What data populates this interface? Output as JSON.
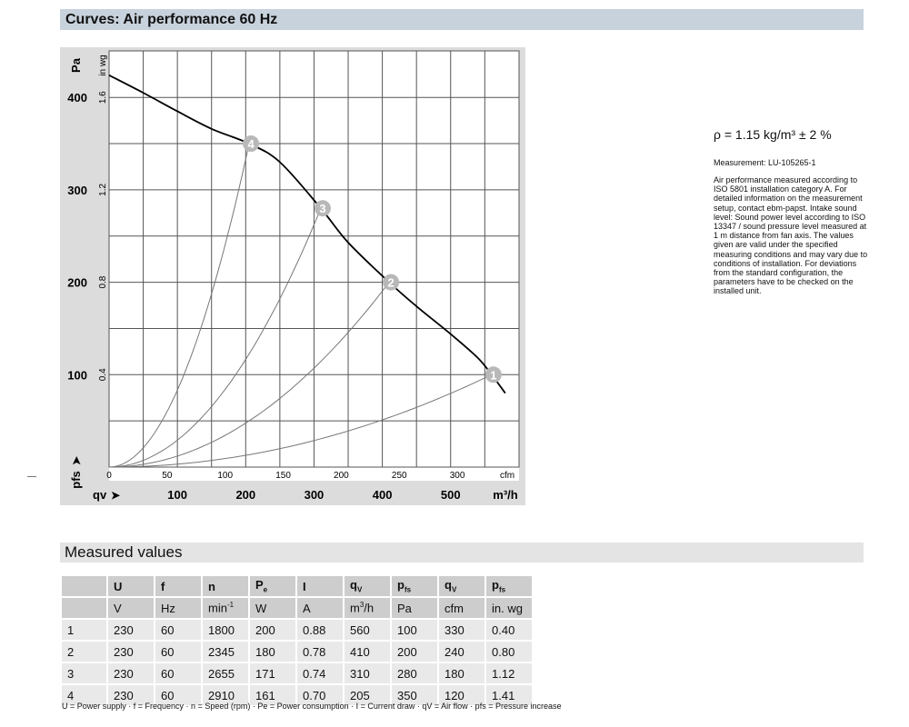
{
  "title": "Curves: Air performance 60 Hz",
  "chart_data": {
    "type": "line",
    "y_label_left": "Pa",
    "y_label_right": "in wg",
    "y_axis_symbol": "pfs",
    "x_label_top": "cfm",
    "x_label_bottom": "m³/h",
    "x_axis_symbol": "qv",
    "ylim_pa": [
      0,
      450
    ],
    "xlim_m3h": [
      0,
      600
    ],
    "y_ticks_pa": [
      100,
      200,
      300,
      400
    ],
    "y_ticks_inwg": [
      "0.4",
      "0.8",
      "1.2",
      "1.6"
    ],
    "x_ticks_cfm": [
      0,
      50,
      100,
      150,
      200,
      250,
      300
    ],
    "x_ticks_m3h": [
      100,
      200,
      300,
      400,
      500
    ],
    "grid": true,
    "fan_curve": {
      "x_m3h": [
        0,
        50,
        100,
        150,
        205,
        250,
        310,
        350,
        410,
        450,
        500,
        540,
        560,
        580
      ],
      "y_pa": [
        424,
        405,
        385,
        366,
        350,
        330,
        280,
        243,
        200,
        174,
        144,
        118,
        100,
        80
      ]
    },
    "operating_points": [
      {
        "label": "1",
        "x_m3h": 560,
        "y_pa": 100
      },
      {
        "label": "2",
        "x_m3h": 410,
        "y_pa": 200
      },
      {
        "label": "3",
        "x_m3h": 310,
        "y_pa": 280
      },
      {
        "label": "4",
        "x_m3h": 205,
        "y_pa": 350
      }
    ],
    "colors": {
      "fan_curve": "#000000",
      "system_curves": "#777777",
      "marker": "#b8b8b8",
      "axis_band": "#dcdcdc"
    }
  },
  "info": {
    "rho": "ρ = 1.15 kg/m³ ± 2 %",
    "measurement": "Measurement: LU-105265-1",
    "description": "Air performance measured according to ISO 5801 installation category A. For detailed information on the measurement setup, contact ebm-papst. Intake sound level: Sound power level according to ISO 13347 / sound pressure level measured at 1 m distance from fan axis. The values given are valid under the specified measuring conditions and may vary due to conditions of installation. For deviations from the standard configuration, the parameters have to be checked on the installed unit."
  },
  "measured": {
    "title": "Measured values",
    "headers": [
      "",
      "U",
      "f",
      "n",
      "Pe",
      "I",
      "qV",
      "pfs",
      "qV",
      "pfs"
    ],
    "units": [
      "",
      "V",
      "Hz",
      "min-1",
      "W",
      "A",
      "m3/h",
      "Pa",
      "cfm",
      "in. wg"
    ],
    "rows": [
      [
        "1",
        "230",
        "60",
        "1800",
        "200",
        "0.88",
        "560",
        "100",
        "330",
        "0.40"
      ],
      [
        "2",
        "230",
        "60",
        "2345",
        "180",
        "0.78",
        "410",
        "200",
        "240",
        "0.80"
      ],
      [
        "3",
        "230",
        "60",
        "2655",
        "171",
        "0.74",
        "310",
        "280",
        "180",
        "1.12"
      ],
      [
        "4",
        "230",
        "60",
        "2910",
        "161",
        "0.70",
        "205",
        "350",
        "120",
        "1.41"
      ]
    ],
    "legend": "U = Power supply · f = Frequency · n = Speed (rpm) · Pe = Power consumption · I = Current draw · qV = Air flow · pfs = Pressure increase"
  }
}
